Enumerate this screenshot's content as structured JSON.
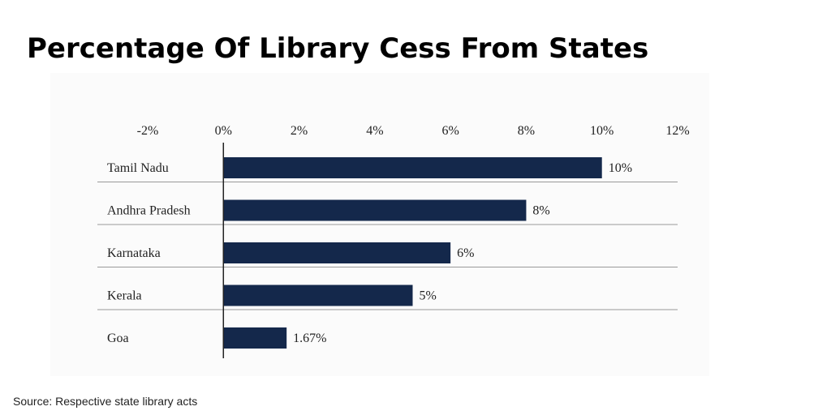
{
  "header": {
    "title": "Percentage Of Library Cess From States"
  },
  "footer": {
    "source": "Source: Respective state library acts"
  },
  "chart_data": {
    "type": "bar",
    "orientation": "horizontal",
    "title": "",
    "xlabel": "",
    "ylabel": "",
    "categories": [
      "Tamil Nadu",
      "Andhra Pradesh",
      "Karnataka",
      "Kerala",
      "Goa"
    ],
    "values": [
      10,
      8,
      6,
      5,
      1.67
    ],
    "data_labels": [
      "10%",
      "8%",
      "6%",
      "5%",
      "1.67%"
    ],
    "xlim": [
      -2,
      12
    ],
    "x_ticks": [
      -2,
      0,
      2,
      4,
      6,
      8,
      10,
      12
    ],
    "x_tick_labels": [
      "-2%",
      "0%",
      "2%",
      "4%",
      "6%",
      "8%",
      "10%",
      "12%"
    ],
    "axis_position": "top",
    "grid": false,
    "legend": "none",
    "bar_color": "#14284b",
    "separator_color": "#999999"
  }
}
